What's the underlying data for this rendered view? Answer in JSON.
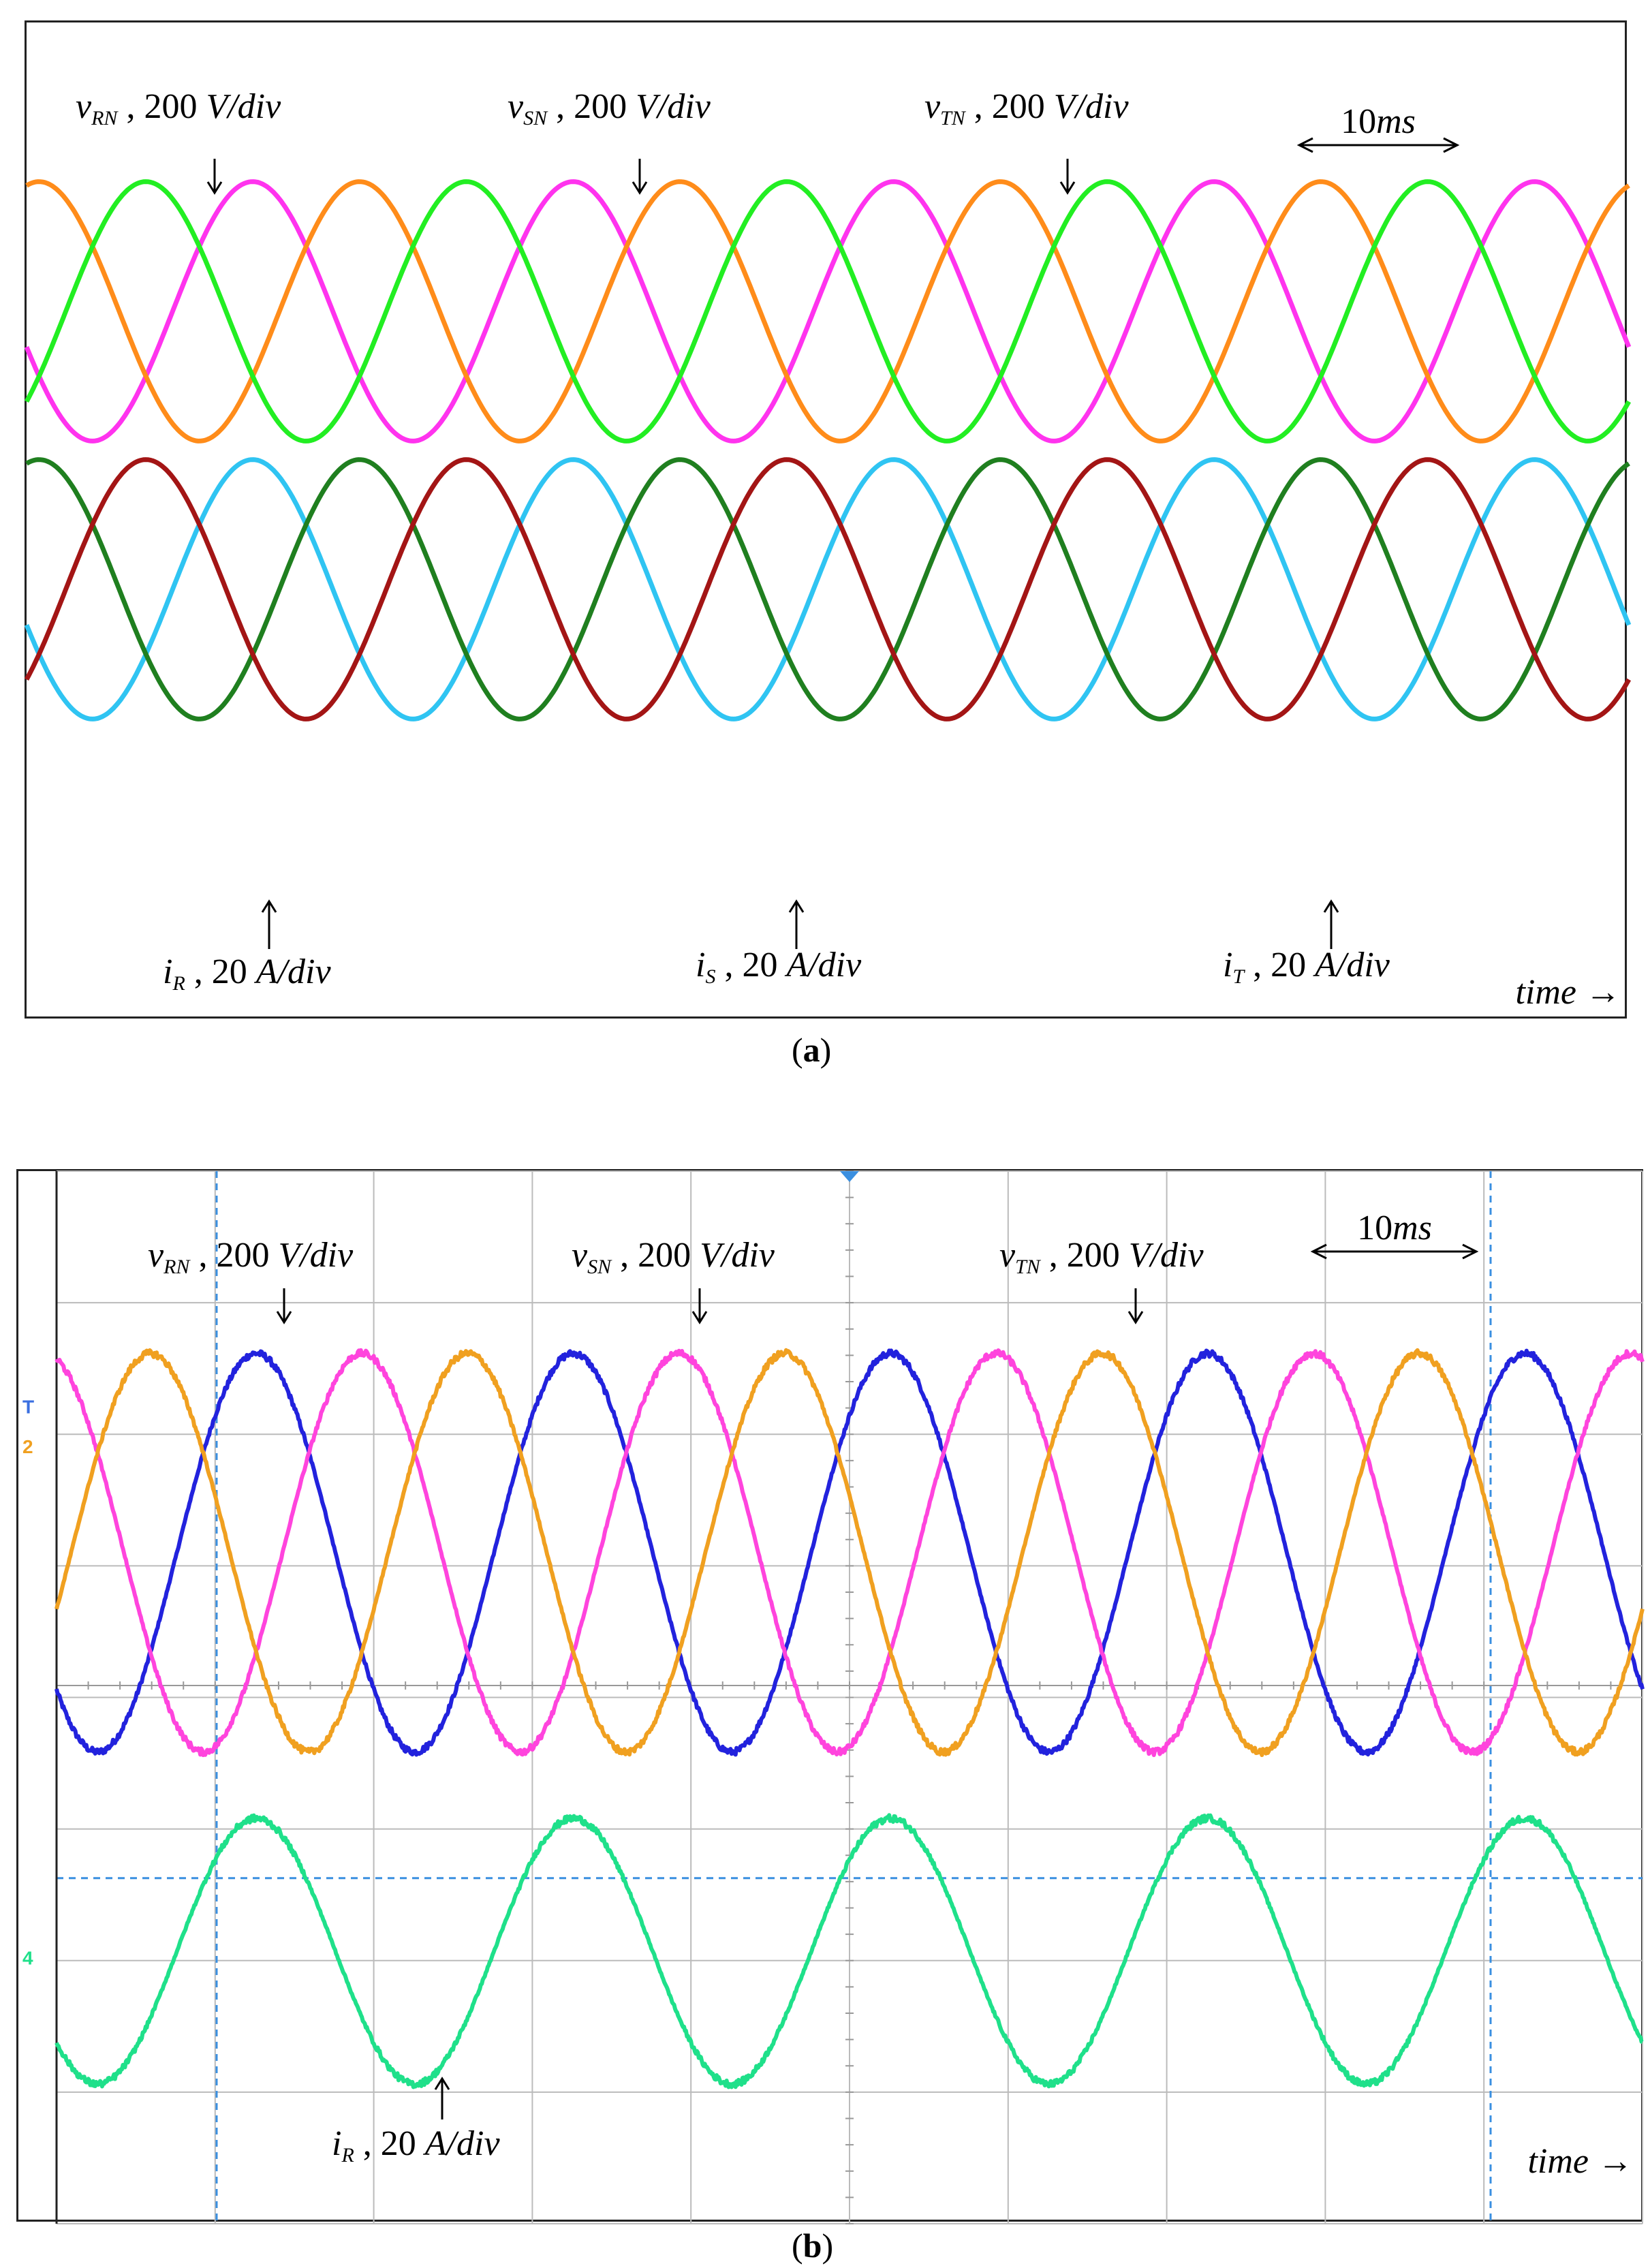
{
  "panels": [
    {
      "id": "a",
      "caption_open": "(",
      "caption_letter": "a",
      "caption_close": ")",
      "time_label": "time",
      "time_arrow": "→",
      "scale_label": "10ms",
      "annotations": [
        {
          "var": "v",
          "sub": "RN",
          "scale": "200",
          "unit": "V/div"
        },
        {
          "var": "v",
          "sub": "SN",
          "scale": "200",
          "unit": "V/div"
        },
        {
          "var": "v",
          "sub": "TN",
          "scale": "200",
          "unit": "V/div"
        },
        {
          "var": "i",
          "sub": "R",
          "scale": "20",
          "unit": "A/div"
        },
        {
          "var": "i",
          "sub": "S",
          "scale": "20",
          "unit": "A/div"
        },
        {
          "var": "i",
          "sub": "T",
          "scale": "20",
          "unit": "A/div"
        }
      ]
    },
    {
      "id": "b",
      "caption_open": "(",
      "caption_letter": "b",
      "caption_close": ")",
      "time_label": "time",
      "time_arrow": "→",
      "scale_label": "10ms",
      "channel_markers": [
        "T",
        "2",
        "4"
      ],
      "annotations": [
        {
          "var": "v",
          "sub": "RN",
          "scale": "200",
          "unit": "V/div"
        },
        {
          "var": "v",
          "sub": "SN",
          "scale": "200",
          "unit": "V/div"
        },
        {
          "var": "v",
          "sub": "TN",
          "scale": "200",
          "unit": "V/div"
        },
        {
          "var": "i",
          "sub": "R",
          "scale": "20",
          "unit": "A/div"
        }
      ]
    }
  ],
  "chart_data": [
    {
      "type": "line",
      "panel": "a",
      "x_unit": "ms",
      "time_span_ms": 100,
      "frequency_hz": 50,
      "grid": false,
      "series": [
        {
          "name": "vRN",
          "amplitude_div": 1.4,
          "offset_div": 1.0,
          "phase_deg": 0,
          "color": "#ff33ee"
        },
        {
          "name": "vSN",
          "amplitude_div": 1.4,
          "offset_div": 1.0,
          "phase_deg": -120,
          "color": "#ff8c1a"
        },
        {
          "name": "vTN",
          "amplitude_div": 1.4,
          "offset_div": 1.0,
          "phase_deg": 120,
          "color": "#22ee22"
        },
        {
          "name": "iR",
          "amplitude_div": 1.4,
          "offset_div": -2.0,
          "phase_deg": 0,
          "color": "#2fc4f2"
        },
        {
          "name": "iS",
          "amplitude_div": 1.4,
          "offset_div": -2.0,
          "phase_deg": -120,
          "color": "#1f7f1f"
        },
        {
          "name": "iT",
          "amplitude_div": 1.4,
          "offset_div": -2.0,
          "phase_deg": 120,
          "color": "#a31515"
        }
      ]
    },
    {
      "type": "line",
      "panel": "b",
      "x_unit": "ms",
      "time_span_ms": 100,
      "frequency_hz": 50,
      "grid": true,
      "series": [
        {
          "name": "vRN",
          "amplitude_div": 1.5,
          "offset_div": 1.0,
          "phase_deg": 0,
          "color": "#2222dd"
        },
        {
          "name": "vSN",
          "amplitude_div": 1.5,
          "offset_div": 1.0,
          "phase_deg": -120,
          "color": "#ff44dd"
        },
        {
          "name": "vTN",
          "amplitude_div": 1.5,
          "offset_div": 1.0,
          "phase_deg": 120,
          "color": "#f0a020"
        },
        {
          "name": "iR",
          "amplitude_div": 1.0,
          "offset_div": -2.0,
          "phase_deg": 0,
          "color": "#1fe08a"
        }
      ]
    }
  ]
}
